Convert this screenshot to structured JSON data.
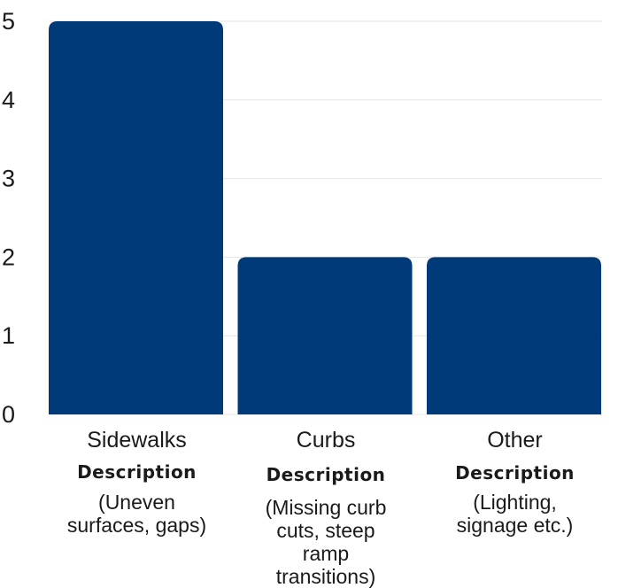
{
  "chart_data": {
    "type": "bar",
    "title": "",
    "xlabel": "",
    "ylabel": "",
    "ylim": [
      0,
      5
    ],
    "yticks": [
      0,
      1,
      2,
      3,
      4,
      5
    ],
    "grid": true,
    "bar_color": "#003a78",
    "gridline_color": "#e5e5e5",
    "categories": [
      {
        "name": "Sidewalks",
        "heading": "Description",
        "description": [
          "(Uneven",
          "surfaces, gaps)"
        ]
      },
      {
        "name": "Curbs",
        "heading": "Description",
        "description": [
          "(Missing curb",
          "cuts, steep",
          "ramp",
          "transitions)"
        ]
      },
      {
        "name": "Other",
        "heading": "Description",
        "description": [
          "(Lighting,",
          "signage etc.)"
        ]
      }
    ],
    "values": [
      5,
      2,
      2
    ]
  }
}
